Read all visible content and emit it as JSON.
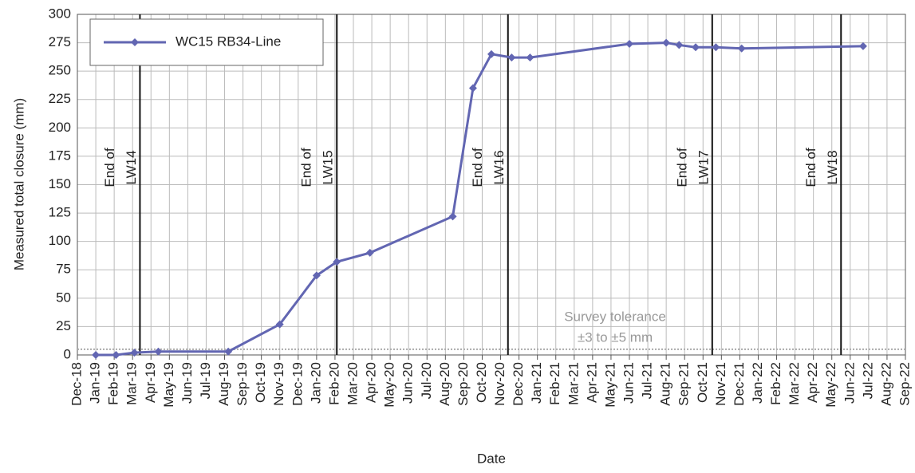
{
  "chart_data": {
    "type": "line",
    "x_label": "Date",
    "y_label": "Measured total closure (mm)",
    "xlim": [
      0,
      45
    ],
    "xticks": [
      {
        "value": 0,
        "label": "Dec-18"
      },
      {
        "value": 1,
        "label": "Jan-19"
      },
      {
        "value": 2,
        "label": "Feb-19"
      },
      {
        "value": 3,
        "label": "Mar-19"
      },
      {
        "value": 4,
        "label": "Apr-19"
      },
      {
        "value": 5,
        "label": "May-19"
      },
      {
        "value": 6,
        "label": "Jun-19"
      },
      {
        "value": 7,
        "label": "Jul-19"
      },
      {
        "value": 8,
        "label": "Aug-19"
      },
      {
        "value": 9,
        "label": "Sep-19"
      },
      {
        "value": 10,
        "label": "Oct-19"
      },
      {
        "value": 11,
        "label": "Nov-19"
      },
      {
        "value": 12,
        "label": "Dec-19"
      },
      {
        "value": 13,
        "label": "Jan-20"
      },
      {
        "value": 14,
        "label": "Feb-20"
      },
      {
        "value": 15,
        "label": "Mar-20"
      },
      {
        "value": 16,
        "label": "Apr-20"
      },
      {
        "value": 17,
        "label": "May-20"
      },
      {
        "value": 18,
        "label": "Jun-20"
      },
      {
        "value": 19,
        "label": "Jul-20"
      },
      {
        "value": 20,
        "label": "Aug-20"
      },
      {
        "value": 21,
        "label": "Sep-20"
      },
      {
        "value": 22,
        "label": "Oct-20"
      },
      {
        "value": 23,
        "label": "Nov-20"
      },
      {
        "value": 24,
        "label": "Dec-20"
      },
      {
        "value": 25,
        "label": "Jan-21"
      },
      {
        "value": 26,
        "label": "Feb-21"
      },
      {
        "value": 27,
        "label": "Mar-21"
      },
      {
        "value": 28,
        "label": "Apr-21"
      },
      {
        "value": 29,
        "label": "May-21"
      },
      {
        "value": 30,
        "label": "Jun-21"
      },
      {
        "value": 31,
        "label": "Jul-21"
      },
      {
        "value": 32,
        "label": "Aug-21"
      },
      {
        "value": 33,
        "label": "Sep-21"
      },
      {
        "value": 34,
        "label": "Oct-21"
      },
      {
        "value": 35,
        "label": "Nov-21"
      },
      {
        "value": 36,
        "label": "Dec-21"
      },
      {
        "value": 37,
        "label": "Jan-22"
      },
      {
        "value": 38,
        "label": "Feb-22"
      },
      {
        "value": 39,
        "label": "Mar-22"
      },
      {
        "value": 40,
        "label": "Apr-22"
      },
      {
        "value": 41,
        "label": "May-22"
      },
      {
        "value": 42,
        "label": "Jun-22"
      },
      {
        "value": 43,
        "label": "Jul-22"
      },
      {
        "value": 44,
        "label": "Aug-22"
      },
      {
        "value": 45,
        "label": "Sep-22"
      }
    ],
    "ylim": [
      0,
      300
    ],
    "yticks": [
      0,
      25,
      50,
      75,
      100,
      125,
      150,
      175,
      200,
      225,
      250,
      275,
      300
    ],
    "grid": true,
    "legend": "upper-left",
    "series": [
      {
        "name": "WC15 RB34-Line",
        "color": "#6266b2",
        "x": [
          1.0,
          2.1,
          3.1,
          4.4,
          8.2,
          11.0,
          13.0,
          14.1,
          15.9,
          20.4,
          21.5,
          22.5,
          23.6,
          24.6,
          30.0,
          32.0,
          32.7,
          33.6,
          34.7,
          36.1,
          42.7
        ],
        "values": [
          0,
          0,
          2,
          3,
          3,
          27,
          70,
          82,
          90,
          122,
          235,
          265,
          262,
          262,
          274,
          275,
          273,
          271,
          271,
          270,
          272
        ]
      }
    ],
    "events": [
      {
        "x": 3.4,
        "lines": [
          "End of",
          "LW14"
        ]
      },
      {
        "x": 14.1,
        "lines": [
          "End of",
          "LW15"
        ]
      },
      {
        "x": 23.4,
        "lines": [
          "End of",
          "LW16"
        ]
      },
      {
        "x": 34.5,
        "lines": [
          "End of",
          "LW17"
        ]
      },
      {
        "x": 41.5,
        "lines": [
          "End of",
          "LW18"
        ]
      }
    ],
    "tolerance": {
      "lines": [
        "Survey tolerance",
        "±3 to ±5 mm"
      ],
      "value": 5
    }
  }
}
